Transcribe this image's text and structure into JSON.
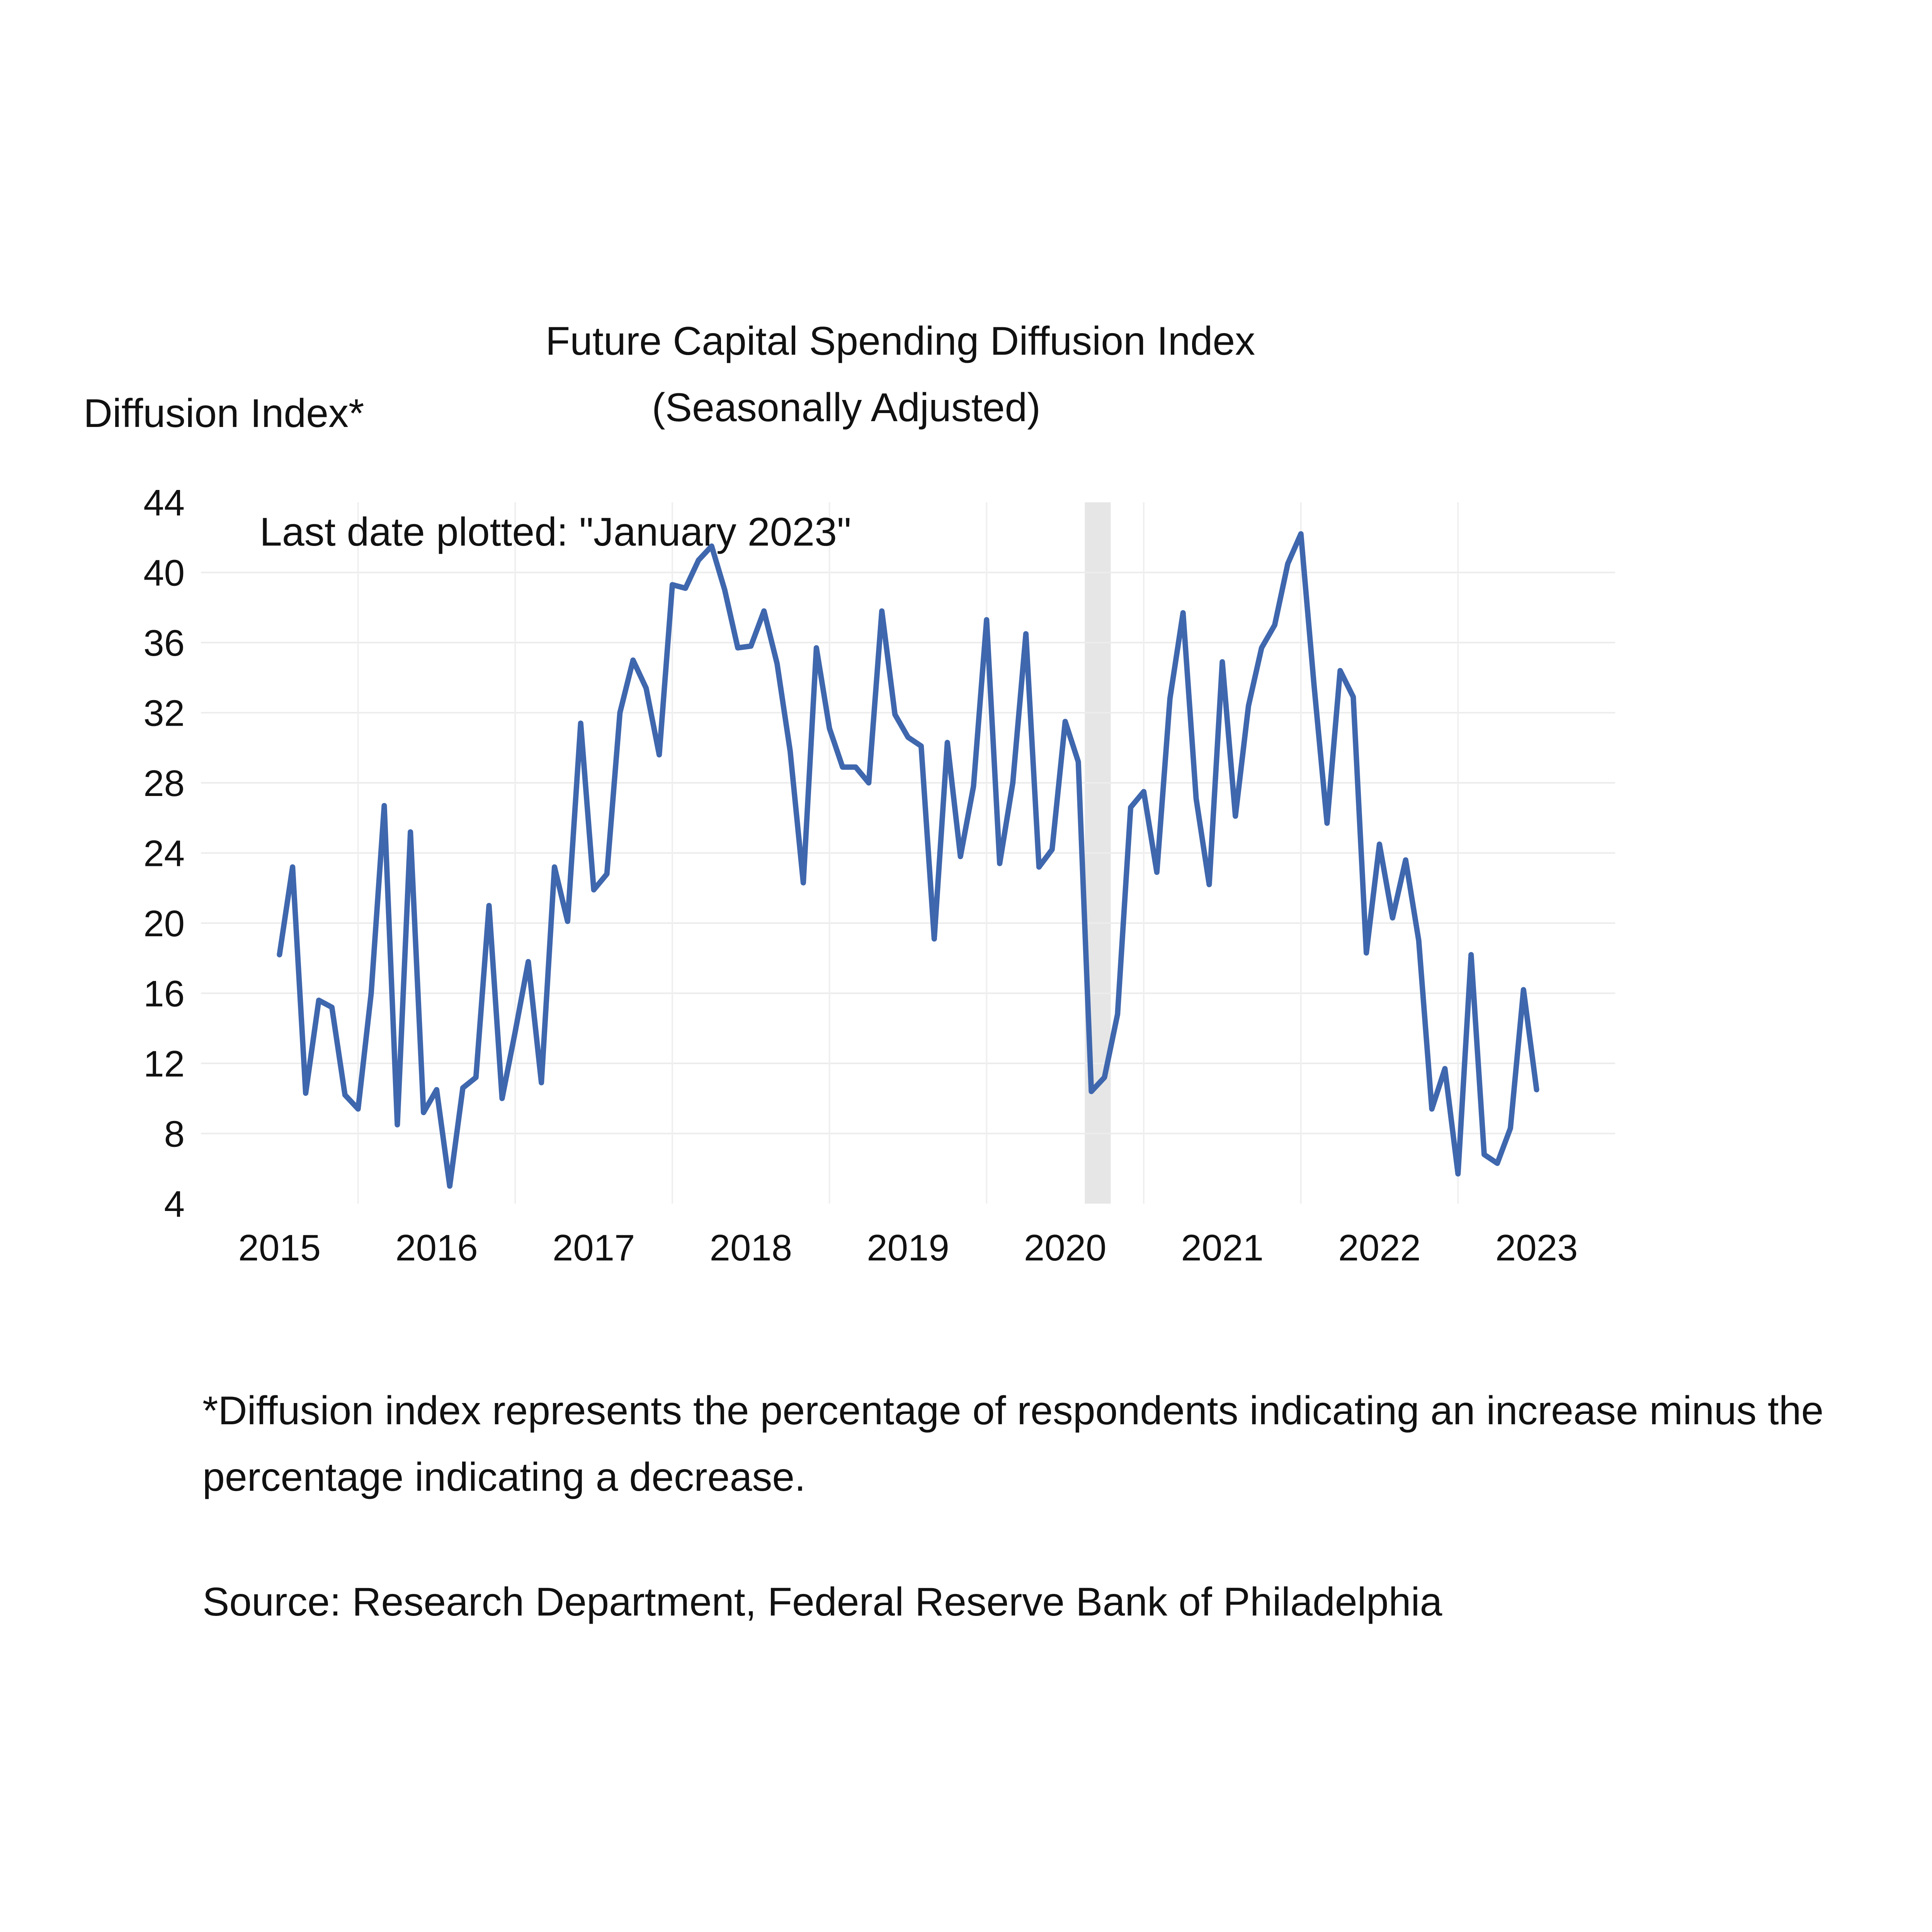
{
  "chart_data": {
    "type": "line",
    "title": "Future Capital Spending Diffusion Index",
    "subtitle": "(Seasonally Adjusted)",
    "ylabel": "Diffusion Index*",
    "xlabel": "",
    "ylim": [
      4,
      44
    ],
    "yticks": [
      4,
      8,
      12,
      16,
      20,
      24,
      28,
      32,
      36,
      40,
      44
    ],
    "xlim": [
      2014.5,
      2023.5
    ],
    "xticks": [
      {
        "label": "2015",
        "value": 2015
      },
      {
        "label": "2016",
        "value": 2016
      },
      {
        "label": "2017",
        "value": 2017
      },
      {
        "label": "2018",
        "value": 2018
      },
      {
        "label": "2019",
        "value": 2019
      },
      {
        "label": "2020",
        "value": 2020
      },
      {
        "label": "2021",
        "value": 2021
      },
      {
        "label": "2022",
        "value": 2022
      },
      {
        "label": "2023",
        "value": 2023
      }
    ],
    "annotation": "Last date plotted: \"January 2023\"",
    "recession": {
      "start": 2020.125,
      "end": 2020.29
    },
    "series": [
      {
        "name": "Future Capital Spending",
        "color": "#3f67ae",
        "start": 2015.0,
        "step_months": 1,
        "values": [
          18.2,
          23.2,
          10.3,
          15.6,
          15.2,
          10.2,
          9.4,
          16.0,
          26.7,
          8.5,
          25.2,
          9.2,
          10.5,
          5.0,
          10.6,
          11.2,
          21.0,
          10.0,
          13.8,
          17.8,
          10.9,
          23.2,
          20.1,
          31.4,
          21.9,
          22.8,
          32.0,
          35.0,
          33.4,
          29.6,
          39.3,
          39.1,
          40.7,
          41.5,
          39.0,
          35.7,
          35.8,
          37.8,
          34.8,
          29.8,
          22.3,
          35.7,
          31.1,
          28.9,
          28.9,
          28.0,
          37.8,
          31.9,
          30.6,
          30.1,
          19.1,
          30.3,
          23.8,
          27.8,
          37.3,
          23.4,
          28.0,
          36.5,
          23.2,
          24.2,
          31.5,
          29.2,
          10.4,
          11.2,
          14.8,
          26.6,
          27.5,
          22.9,
          32.8,
          37.7,
          27.1,
          22.2,
          34.9,
          26.1,
          32.4,
          35.7,
          37.0,
          40.5,
          42.2,
          33.6,
          25.7,
          34.4,
          32.9,
          18.3,
          24.5,
          20.3,
          23.6,
          19.0,
          9.4,
          11.7,
          5.7,
          18.2,
          6.8,
          6.3,
          8.3,
          16.2,
          10.5
        ]
      }
    ]
  },
  "footnote": "*Diffusion index represents the percentage of respondents indicating an increase minus the percentage indicating a decrease.",
  "source": "Source: Research Department, Federal Reserve Bank of Philadelphia"
}
